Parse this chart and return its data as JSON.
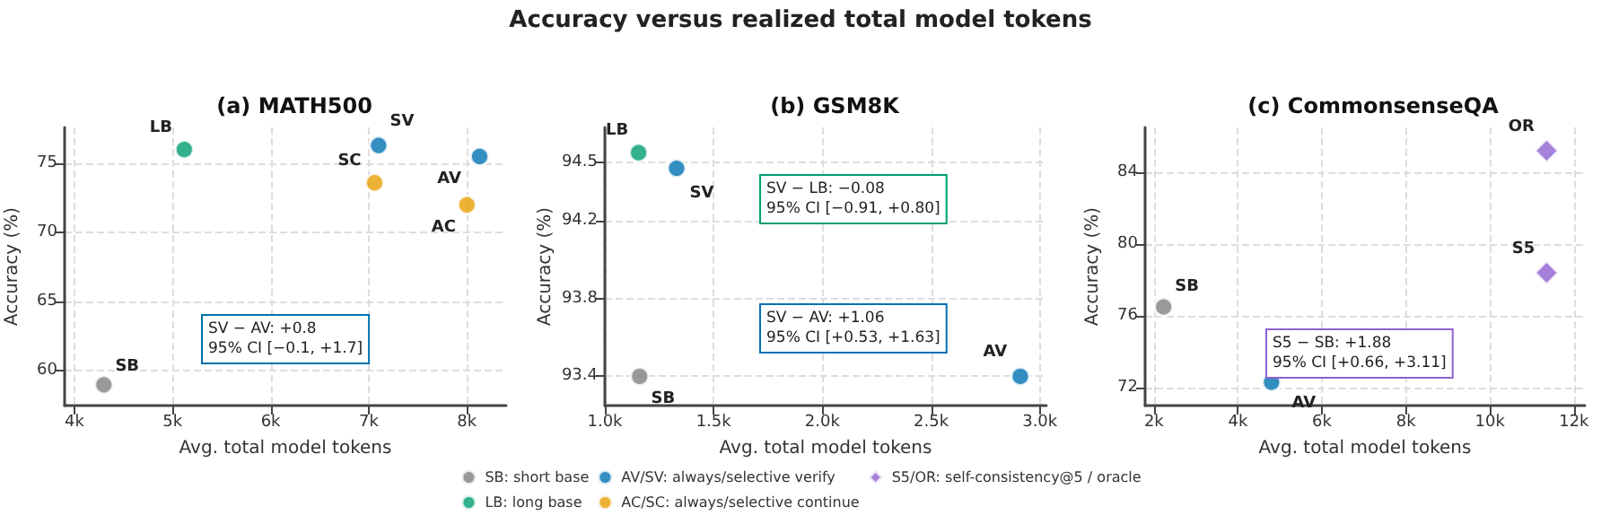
{
  "chart_data": [
    {
      "type": "scatter",
      "title": "(a) MATH500",
      "xlabel": "Avg. total model tokens",
      "ylabel": "Accuracy (%)",
      "xlim": [
        3900,
        8400
      ],
      "xticks": [
        {
          "value": 4000,
          "label": "4k"
        },
        {
          "value": 5000,
          "label": "5k"
        },
        {
          "value": 6000,
          "label": "6k"
        },
        {
          "value": 7000,
          "label": "7k"
        },
        {
          "value": 8000,
          "label": "8k"
        }
      ],
      "ylim": [
        57.5,
        77.6
      ],
      "yticks": [
        60,
        65,
        70,
        75
      ],
      "grid": true,
      "legend": "bottom",
      "marker": "circle",
      "series": [
        {
          "name": "SB: short base",
          "color": "#7f7f7f",
          "x": [
            4300
          ],
          "values": [
            59.0
          ]
        },
        {
          "name": "LB: long base",
          "color": "#009e73",
          "x": [
            5120
          ],
          "values": [
            76.0
          ]
        },
        {
          "name": "AV/SV: always/selective verify",
          "color": "#0072b2",
          "x": [
            7100,
            8130
          ],
          "values": [
            76.3,
            75.5
          ]
        },
        {
          "name": "AC/SC: always/selective continue",
          "color": "#e69f00",
          "x": [
            7060,
            8000
          ],
          "values": [
            73.6,
            72.0
          ]
        }
      ],
      "annotations": [
        "Accuracy versus realized total model tokens",
        "SV − AV: +0.8\n95% CI [−0.1, +1.7]",
        {
          "text": "SB",
          "x": 4300,
          "y": 59.0
        },
        {
          "text": "LB",
          "x": 5120,
          "y": 76.0
        },
        {
          "text": "SV",
          "x": 7100,
          "y": 76.3
        },
        {
          "text": "AV",
          "x": 8130,
          "y": 75.5
        },
        {
          "text": "SC",
          "x": 7060,
          "y": 73.6
        },
        {
          "text": "AC",
          "x": 8000,
          "y": 72.0
        }
      ]
    },
    {
      "type": "scatter",
      "title": "(b) GSM8K",
      "xlabel": "Avg. total model tokens",
      "ylabel": "Accuracy (%)",
      "xlim": [
        1000,
        3030
      ],
      "xticks": [
        {
          "value": 1000,
          "label": "1.0k"
        },
        {
          "value": 1500,
          "label": "1.5k"
        },
        {
          "value": 2000,
          "label": "2.0k"
        },
        {
          "value": 2500,
          "label": "2.5k"
        },
        {
          "value": 3000,
          "label": "3.0k"
        }
      ],
      "ylim": [
        93.25,
        94.68
      ],
      "yticks": [
        93.4,
        93.8,
        94.2,
        94.5
      ],
      "grid": true,
      "legend": "bottom",
      "marker": "circle",
      "series": [
        {
          "name": "SB: short base",
          "color": "#7f7f7f",
          "x": [
            1160
          ],
          "values": [
            93.4
          ]
        },
        {
          "name": "LB: long base",
          "color": "#009e73",
          "x": [
            1155
          ],
          "values": [
            94.55
          ]
        },
        {
          "name": "AV/SV: always/selective verify",
          "color": "#0072b2",
          "x": [
            1330,
            2910
          ],
          "values": [
            94.47,
            93.4
          ]
        }
      ],
      "annotations": [
        "SV − LB: −0.08\n95% CI [−0.91, +0.80]",
        "SV − AV: +1.06\n95% CI [+0.53, +1.63]",
        {
          "text": "LB",
          "x": 1155,
          "y": 94.55
        },
        {
          "text": "SV",
          "x": 1330,
          "y": 94.47
        },
        {
          "text": "SB",
          "x": 1160,
          "y": 93.4
        },
        {
          "text": "AV",
          "x": 2910,
          "y": 93.4
        }
      ]
    },
    {
      "type": "scatter",
      "title": "(c) CommonsenseQA",
      "xlabel": "Avg. total model tokens",
      "ylabel": "Accuracy (%)",
      "xlim": [
        1790,
        12260
      ],
      "xticks": [
        {
          "value": 2000,
          "label": "2k"
        },
        {
          "value": 4000,
          "label": "4k"
        },
        {
          "value": 6000,
          "label": "6k"
        },
        {
          "value": 8000,
          "label": "8k"
        },
        {
          "value": 10000,
          "label": "10k"
        },
        {
          "value": 12000,
          "label": "12k"
        }
      ],
      "ylim": [
        71.0,
        86.5
      ],
      "yticks": [
        72,
        76,
        80,
        84
      ],
      "grid": true,
      "legend": "bottom",
      "marker": "circle",
      "series": [
        {
          "name": "SB: short base",
          "color": "#7f7f7f",
          "x": [
            2230
          ],
          "values": [
            76.5
          ]
        },
        {
          "name": "AV/SV: always/selective verify",
          "color": "#0072b2",
          "x": [
            4800
          ],
          "values": [
            72.3
          ]
        },
        {
          "name": "S5/OR: self-consistency@5 / oracle",
          "color": "#8e62d1",
          "marker": "diamond",
          "x": [
            11350,
            11350
          ],
          "values": [
            78.4,
            85.2
          ]
        }
      ],
      "annotations": [
        "S5 − SB: +1.88\n95% CI [+0.66, +3.11]",
        {
          "text": "SB",
          "x": 2230,
          "y": 76.5
        },
        {
          "text": "AV",
          "x": 4800,
          "y": 72.3
        },
        {
          "text": "S5",
          "x": 11350,
          "y": 78.4
        },
        {
          "text": "OR",
          "x": 11350,
          "y": 85.2
        }
      ]
    }
  ]
}
